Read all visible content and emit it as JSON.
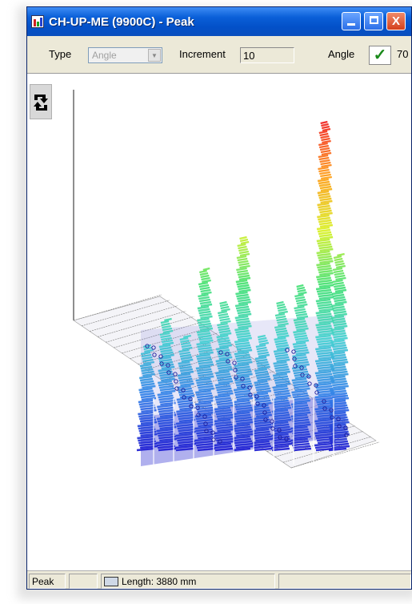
{
  "window": {
    "title": "CH-UP-ME (9900C) - Peak",
    "minimize_icon": "minimize-icon",
    "maximize_icon": "maximize-icon",
    "close_icon": "close-icon",
    "close_glyph": "X"
  },
  "toolbar": {
    "type_label": "Type",
    "type_value": "Angle",
    "increment_label": "Increment",
    "increment_value": "10",
    "angle_label": "Angle",
    "angle_value": "70",
    "check_glyph": "✓"
  },
  "side": {
    "rotate_icon": "rotate-icon"
  },
  "statusbar": {
    "mode": "Peak",
    "length_text": "Length: 3880 mm"
  },
  "chart_data": {
    "type": "surface-3d",
    "colorscale": [
      "#1a1ad0",
      "#2f7fe8",
      "#3fd0d0",
      "#3fe070",
      "#d8f020",
      "#ff9a10",
      "#f01818"
    ],
    "peaks_relative": [
      0.32,
      0.4,
      0.35,
      0.55,
      0.45,
      0.65,
      0.35,
      0.45,
      0.5,
      1.0,
      0.6
    ]
  }
}
